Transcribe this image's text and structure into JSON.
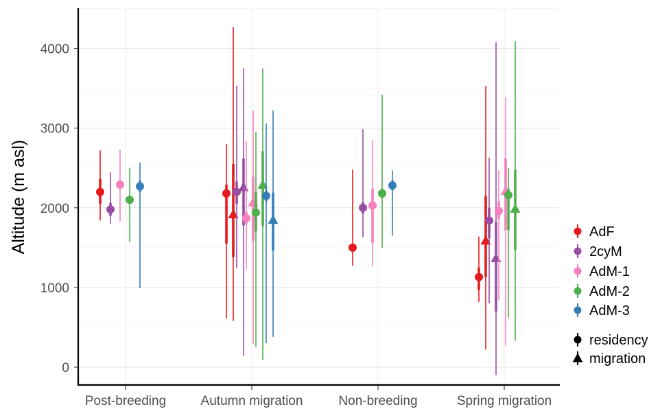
{
  "chart_data": {
    "type": "pointrange",
    "xlabel": "",
    "ylabel": "Altitude (m asl)",
    "ylim": [
      -100,
      4400
    ],
    "yticks": [
      0,
      1000,
      2000,
      3000,
      4000
    ],
    "grid": true,
    "categories": [
      "Post-breeding",
      "Autumn migration",
      "Non-breeding",
      "Spring migration"
    ],
    "group_order": [
      "AdF",
      "2cyM",
      "AdM-1",
      "AdM-2",
      "AdM-3"
    ],
    "shape_order": [
      "residency",
      "migration"
    ],
    "colors": {
      "AdF": "#e41a1c",
      "2cyM": "#984ea3",
      "AdM-1": "#f781bf",
      "AdM-2": "#4daf4a",
      "AdM-3": "#377eb8"
    },
    "legend": {
      "position": "right",
      "groups": [
        "AdF",
        "2cyM",
        "AdM-1",
        "AdM-2",
        "AdM-3"
      ],
      "shapes": [
        "residency",
        "migration"
      ]
    },
    "points": [
      {
        "category": "Post-breeding",
        "group": "AdF",
        "shape": "residency",
        "value": 2200,
        "inner": [
          2050,
          2360
        ],
        "outer": [
          1840,
          2720
        ]
      },
      {
        "category": "Post-breeding",
        "group": "2cyM",
        "shape": "residency",
        "value": 1980,
        "inner": [
          1900,
          2060
        ],
        "outer": [
          1800,
          2450
        ]
      },
      {
        "category": "Post-breeding",
        "group": "AdM-1",
        "shape": "residency",
        "value": 2290,
        "inner": [
          2250,
          2330
        ],
        "outer": [
          1830,
          2730
        ]
      },
      {
        "category": "Post-breeding",
        "group": "AdM-2",
        "shape": "residency",
        "value": 2100,
        "inner": [
          2050,
          2150
        ],
        "outer": [
          1570,
          2500
        ]
      },
      {
        "category": "Post-breeding",
        "group": "AdM-3",
        "shape": "residency",
        "value": 2270,
        "inner": [
          2200,
          2340
        ],
        "outer": [
          990,
          2570
        ]
      },
      {
        "category": "Autumn migration",
        "group": "AdF",
        "shape": "residency",
        "value": 2180,
        "inner": [
          1550,
          2290
        ],
        "outer": [
          610,
          2800
        ]
      },
      {
        "category": "Autumn migration",
        "group": "AdF",
        "shape": "migration",
        "value": 1920,
        "inner": [
          1380,
          2550
        ],
        "outer": [
          580,
          4270
        ]
      },
      {
        "category": "Autumn migration",
        "group": "2cyM",
        "shape": "residency",
        "value": 2200,
        "inner": [
          2050,
          2330
        ],
        "outer": [
          1240,
          3530
        ]
      },
      {
        "category": "Autumn migration",
        "group": "2cyM",
        "shape": "migration",
        "value": 2260,
        "inner": [
          1780,
          2620
        ],
        "outer": [
          140,
          3750
        ]
      },
      {
        "category": "Autumn migration",
        "group": "AdM-1",
        "shape": "residency",
        "value": 1870,
        "inner": [
          1800,
          1950
        ],
        "outer": [
          1230,
          2840
        ]
      },
      {
        "category": "Autumn migration",
        "group": "AdM-1",
        "shape": "migration",
        "value": 2070,
        "inner": [
          1580,
          2390
        ],
        "outer": [
          290,
          3220
        ]
      },
      {
        "category": "Autumn migration",
        "group": "AdM-2",
        "shape": "residency",
        "value": 1940,
        "inner": [
          1700,
          2200
        ],
        "outer": [
          250,
          2950
        ]
      },
      {
        "category": "Autumn migration",
        "group": "AdM-2",
        "shape": "migration",
        "value": 2290,
        "inner": [
          1770,
          2710
        ],
        "outer": [
          90,
          3750
        ]
      },
      {
        "category": "Autumn migration",
        "group": "AdM-3",
        "shape": "residency",
        "value": 2150,
        "inner": [
          2080,
          2220
        ],
        "outer": [
          300,
          3060
        ]
      },
      {
        "category": "Autumn migration",
        "group": "AdM-3",
        "shape": "migration",
        "value": 1850,
        "inner": [
          1460,
          2190
        ],
        "outer": [
          380,
          3220
        ]
      },
      {
        "category": "Non-breeding",
        "group": "AdF",
        "shape": "residency",
        "value": 1500,
        "inner": [
          1450,
          1550
        ],
        "outer": [
          1270,
          2480
        ]
      },
      {
        "category": "Non-breeding",
        "group": "2cyM",
        "shape": "residency",
        "value": 2000,
        "inner": [
          1930,
          2070
        ],
        "outer": [
          1630,
          2990
        ]
      },
      {
        "category": "Non-breeding",
        "group": "AdM-1",
        "shape": "residency",
        "value": 2030,
        "inner": [
          1560,
          2240
        ],
        "outer": [
          1270,
          2850
        ]
      },
      {
        "category": "Non-breeding",
        "group": "AdM-2",
        "shape": "residency",
        "value": 2180,
        "inner": [
          2120,
          2240
        ],
        "outer": [
          1500,
          3420
        ]
      },
      {
        "category": "Non-breeding",
        "group": "AdM-3",
        "shape": "residency",
        "value": 2280,
        "inner": [
          2220,
          2340
        ],
        "outer": [
          1650,
          2470
        ]
      },
      {
        "category": "Spring migration",
        "group": "AdF",
        "shape": "residency",
        "value": 1130,
        "inner": [
          970,
          1250
        ],
        "outer": [
          820,
          1640
        ]
      },
      {
        "category": "Spring migration",
        "group": "AdF",
        "shape": "migration",
        "value": 1590,
        "inner": [
          1130,
          2150
        ],
        "outer": [
          220,
          3530
        ]
      },
      {
        "category": "Spring migration",
        "group": "2cyM",
        "shape": "residency",
        "value": 1840,
        "inner": [
          1620,
          2000
        ],
        "outer": [
          800,
          2630
        ]
      },
      {
        "category": "Spring migration",
        "group": "2cyM",
        "shape": "migration",
        "value": 1370,
        "inner": [
          700,
          1820
        ],
        "outer": [
          -100,
          4080
        ]
      },
      {
        "category": "Spring migration",
        "group": "AdM-1",
        "shape": "residency",
        "value": 1960,
        "inner": [
          1860,
          2080
        ],
        "outer": [
          840,
          2470
        ]
      },
      {
        "category": "Spring migration",
        "group": "AdM-1",
        "shape": "migration",
        "value": 2210,
        "inner": [
          1720,
          2620
        ],
        "outer": [
          270,
          3390
        ]
      },
      {
        "category": "Spring migration",
        "group": "AdM-2",
        "shape": "residency",
        "value": 2160,
        "inner": [
          1720,
          2240
        ],
        "outer": [
          620,
          2500
        ]
      },
      {
        "category": "Spring migration",
        "group": "AdM-2",
        "shape": "migration",
        "value": 1990,
        "inner": [
          1470,
          2480
        ],
        "outer": [
          330,
          4090
        ]
      }
    ]
  }
}
